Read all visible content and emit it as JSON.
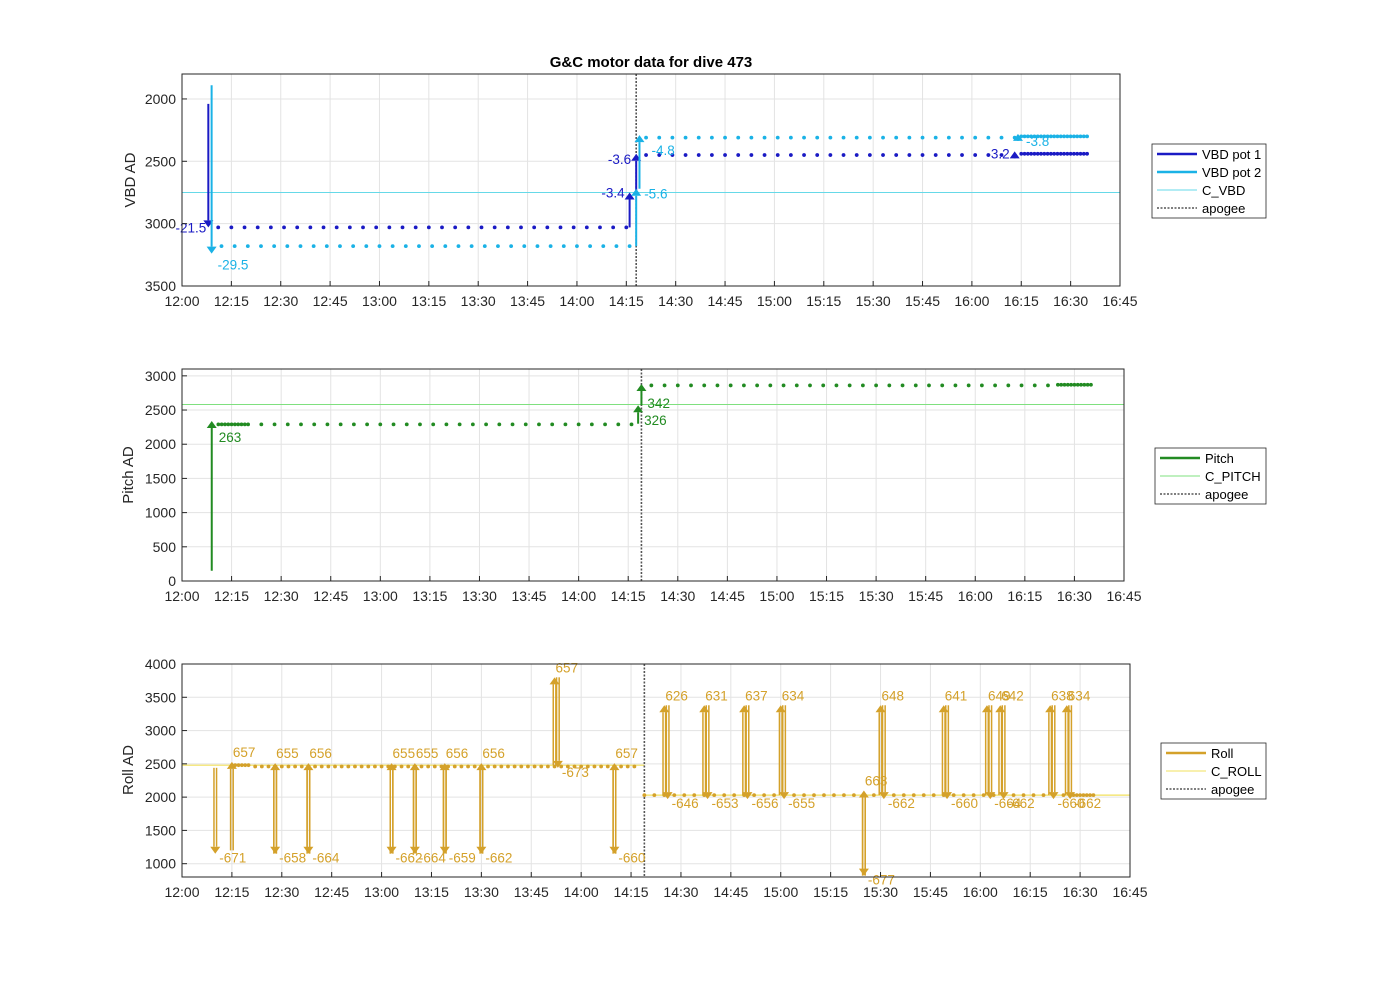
{
  "title": "G&C motor data for dive 473",
  "x_ticks": [
    "12:00",
    "12:15",
    "12:30",
    "12:45",
    "13:00",
    "13:15",
    "13:30",
    "13:45",
    "14:00",
    "14:15",
    "14:30",
    "14:45",
    "15:00",
    "15:15",
    "15:30",
    "15:45",
    "16:00",
    "16:15",
    "16:30",
    "16:45"
  ],
  "colors": {
    "vbd1": "#1a1ac4",
    "vbd2": "#1ab2e6",
    "c_vbd": "#66d9e8",
    "pitch": "#228b22",
    "c_pitch": "#7fe07f",
    "roll": "#d4a12a",
    "c_roll": "#f2e05c",
    "apogee": "#555555"
  },
  "chart_data": [
    {
      "type": "scatter",
      "ylabel": "VBD AD",
      "xlim": [
        "12:00",
        "16:45"
      ],
      "ylim": [
        3500,
        1800
      ],
      "y_reversed": true,
      "y_ticks": [
        2000,
        2500,
        3000,
        3500
      ],
      "grid": true,
      "legend_position": "right",
      "legend": [
        "VBD pot 1",
        "VBD pot 2",
        "C_VBD",
        "apogee"
      ],
      "apogee": "14:18",
      "c_vbd": 2750,
      "series": [
        {
          "name": "VBD pot 1",
          "segments": [
            {
              "x0": "12:11",
              "x1": "14:16",
              "y": 3030,
              "spacing": 4
            },
            {
              "x0": "14:21",
              "x1": "16:13",
              "y": 2450,
              "spacing": 4
            },
            {
              "x0": "16:15",
              "x1": "16:35",
              "y": 2440,
              "spacing": 1
            }
          ]
        },
        {
          "name": "VBD pot 2",
          "segments": [
            {
              "x0": "12:12",
              "x1": "14:16",
              "y": 3180,
              "spacing": 4
            },
            {
              "x0": "14:21",
              "x1": "16:13",
              "y": 2310,
              "spacing": 4
            },
            {
              "x0": "16:15",
              "x1": "16:35",
              "y": 2300,
              "spacing": 1
            }
          ]
        }
      ],
      "events": [
        {
          "series": "VBD pot 1",
          "x": "12:08",
          "y0": 2040,
          "y1": 3030,
          "label": "-21.5"
        },
        {
          "series": "VBD pot 2",
          "x": "12:09",
          "y0": 1890,
          "y1": 3240,
          "label": "-29.5"
        },
        {
          "series": "VBD pot 1",
          "x": "14:16",
          "y0": 3030,
          "y1": 2750,
          "label": "-3.4"
        },
        {
          "series": "VBD pot 1",
          "x": "14:18",
          "y0": 2750,
          "y1": 2440,
          "label": "-3.6"
        },
        {
          "series": "VBD pot 2",
          "x": "14:18",
          "y0": 3180,
          "y1": 2720,
          "label": "-5.6"
        },
        {
          "series": "VBD pot 2",
          "x": "14:19",
          "y0": 2720,
          "y1": 2290,
          "label": "-4.8"
        },
        {
          "series": "VBD pot 1",
          "x": "16:13",
          "y0": 2450,
          "y1": 2420,
          "label": "-3.2"
        },
        {
          "series": "VBD pot 2",
          "x": "16:14",
          "y0": 2310,
          "y1": 2280,
          "label": "-3.8"
        }
      ]
    },
    {
      "type": "scatter",
      "ylabel": "Pitch AD",
      "xlim": [
        "12:00",
        "16:45"
      ],
      "ylim": [
        0,
        3100
      ],
      "y_ticks": [
        0,
        500,
        1000,
        1500,
        2000,
        2500,
        3000
      ],
      "grid": true,
      "legend_position": "right",
      "legend": [
        "Pitch",
        "C_PITCH",
        "apogee"
      ],
      "apogee": "14:19",
      "c_pitch": 2580,
      "series": [
        {
          "name": "Pitch",
          "segments": [
            {
              "x0": "12:11",
              "x1": "12:20",
              "y": 2290,
              "spacing": 1
            },
            {
              "x0": "12:24",
              "x1": "14:17",
              "y": 2290,
              "spacing": 4
            },
            {
              "x0": "14:22",
              "x1": "16:25",
              "y": 2860,
              "spacing": 4
            },
            {
              "x0": "16:25",
              "x1": "16:35",
              "y": 2870,
              "spacing": 1
            }
          ]
        }
      ],
      "events": [
        {
          "x": "12:09",
          "y0": 150,
          "y1": 2340,
          "label": "263"
        },
        {
          "x": "14:18",
          "y0": 2300,
          "y1": 2570,
          "label": "326"
        },
        {
          "x": "14:19",
          "y0": 2570,
          "y1": 2880,
          "label": "342"
        }
      ]
    },
    {
      "type": "scatter",
      "ylabel": "Roll AD",
      "xlim": [
        "12:00",
        "16:45"
      ],
      "ylim": [
        800,
        4000
      ],
      "y_ticks": [
        1000,
        1500,
        2000,
        2500,
        3000,
        3500,
        4000
      ],
      "grid": true,
      "legend_position": "right",
      "legend": [
        "Roll",
        "C_ROLL",
        "apogee"
      ],
      "apogee": "14:19",
      "c_roll": [
        {
          "x0": "12:00",
          "x1": "14:19",
          "y": 2480
        },
        {
          "x0": "14:19",
          "x1": "16:45",
          "y": 2030
        }
      ],
      "series": [
        {
          "name": "Roll",
          "segments": [
            {
              "x0": "12:15",
              "x1": "12:20",
              "y": 2480,
              "spacing": 1
            },
            {
              "x0": "12:22",
              "x1": "14:17",
              "y": 2460,
              "spacing": 2
            },
            {
              "x0": "14:19",
              "x1": "16:26",
              "y": 2030,
              "spacing": 3
            },
            {
              "x0": "16:27",
              "x1": "16:34",
              "y": 2030,
              "spacing": 1
            }
          ]
        }
      ],
      "events": [
        {
          "x": "12:10",
          "dir": "down",
          "y0": 2440,
          "y1": 1150,
          "label": "-671"
        },
        {
          "x": "12:15",
          "dir": "up",
          "y0": 1200,
          "y1": 2530,
          "label": "657"
        },
        {
          "x": "12:28",
          "dir": "down",
          "y0": 2480,
          "y1": 1150,
          "label": "-658"
        },
        {
          "x": "12:28",
          "dir": "up",
          "y0": 1150,
          "y1": 2510,
          "label": "655"
        },
        {
          "x": "12:38",
          "dir": "down",
          "y0": 2480,
          "y1": 1150,
          "label": "-664"
        },
        {
          "x": "12:38",
          "dir": "up",
          "y0": 1150,
          "y1": 2510,
          "label": "656"
        },
        {
          "x": "13:03",
          "dir": "down",
          "y0": 2480,
          "y1": 1150,
          "label": "-662"
        },
        {
          "x": "13:03",
          "dir": "up",
          "y0": 1150,
          "y1": 2510,
          "label": "655"
        },
        {
          "x": "13:10",
          "dir": "down",
          "y0": 2480,
          "y1": 1150,
          "label": "-664"
        },
        {
          "x": "13:10",
          "dir": "up",
          "y0": 1150,
          "y1": 2510,
          "label": "655"
        },
        {
          "x": "13:19",
          "dir": "down",
          "y0": 2480,
          "y1": 1150,
          "label": "-659"
        },
        {
          "x": "13:19",
          "dir": "up",
          "y0": 1150,
          "y1": 2510,
          "label": "656"
        },
        {
          "x": "13:30",
          "dir": "down",
          "y0": 2480,
          "y1": 1150,
          "label": "-662"
        },
        {
          "x": "13:30",
          "dir": "up",
          "y0": 1150,
          "y1": 2510,
          "label": "656"
        },
        {
          "x": "13:52",
          "dir": "up",
          "y0": 2480,
          "y1": 3800,
          "label": "657"
        },
        {
          "x": "13:53",
          "dir": "down",
          "y0": 3800,
          "y1": 2440,
          "label": "-673"
        },
        {
          "x": "14:10",
          "dir": "down",
          "y0": 2480,
          "y1": 1150,
          "label": "-660"
        },
        {
          "x": "14:10",
          "dir": "up",
          "y0": 1150,
          "y1": 2510,
          "label": "657"
        },
        {
          "x": "14:25",
          "dir": "up",
          "y0": 2030,
          "y1": 3380,
          "label": "626"
        },
        {
          "x": "14:26",
          "dir": "down",
          "y0": 3380,
          "y1": 1970,
          "label": "-646"
        },
        {
          "x": "14:37",
          "dir": "up",
          "y0": 2030,
          "y1": 3380,
          "label": "631"
        },
        {
          "x": "14:38",
          "dir": "down",
          "y0": 3380,
          "y1": 1970,
          "label": "-653"
        },
        {
          "x": "14:49",
          "dir": "up",
          "y0": 2030,
          "y1": 3380,
          "label": "637"
        },
        {
          "x": "14:50",
          "dir": "down",
          "y0": 3380,
          "y1": 1970,
          "label": "-656"
        },
        {
          "x": "15:00",
          "dir": "up",
          "y0": 2030,
          "y1": 3380,
          "label": "634"
        },
        {
          "x": "15:01",
          "dir": "down",
          "y0": 3380,
          "y1": 1970,
          "label": "-655"
        },
        {
          "x": "15:25",
          "dir": "down",
          "y0": 2030,
          "y1": 820,
          "label": "-677"
        },
        {
          "x": "15:25",
          "dir": "up",
          "y0": 820,
          "y1": 2100,
          "label": "663"
        },
        {
          "x": "15:30",
          "dir": "up",
          "y0": 2030,
          "y1": 3380,
          "label": "648"
        },
        {
          "x": "15:31",
          "dir": "down",
          "y0": 3380,
          "y1": 1970,
          "label": "-662"
        },
        {
          "x": "15:49",
          "dir": "up",
          "y0": 2030,
          "y1": 3380,
          "label": "641"
        },
        {
          "x": "15:50",
          "dir": "down",
          "y0": 3380,
          "y1": 1970,
          "label": "-660"
        },
        {
          "x": "16:02",
          "dir": "up",
          "y0": 2030,
          "y1": 3380,
          "label": "649"
        },
        {
          "x": "16:03",
          "dir": "down",
          "y0": 3380,
          "y1": 1970,
          "label": "-664"
        },
        {
          "x": "16:06",
          "dir": "up",
          "y0": 2030,
          "y1": 3380,
          "label": "642"
        },
        {
          "x": "16:07",
          "dir": "down",
          "y0": 3380,
          "y1": 1970,
          "label": "-662"
        },
        {
          "x": "16:21",
          "dir": "up",
          "y0": 2030,
          "y1": 3380,
          "label": "638"
        },
        {
          "x": "16:22",
          "dir": "down",
          "y0": 3380,
          "y1": 1970,
          "label": "-660"
        },
        {
          "x": "16:26",
          "dir": "up",
          "y0": 2030,
          "y1": 3380,
          "label": "634"
        },
        {
          "x": "16:27",
          "dir": "down",
          "y0": 3380,
          "y1": 1970,
          "label": "-662"
        }
      ]
    }
  ]
}
